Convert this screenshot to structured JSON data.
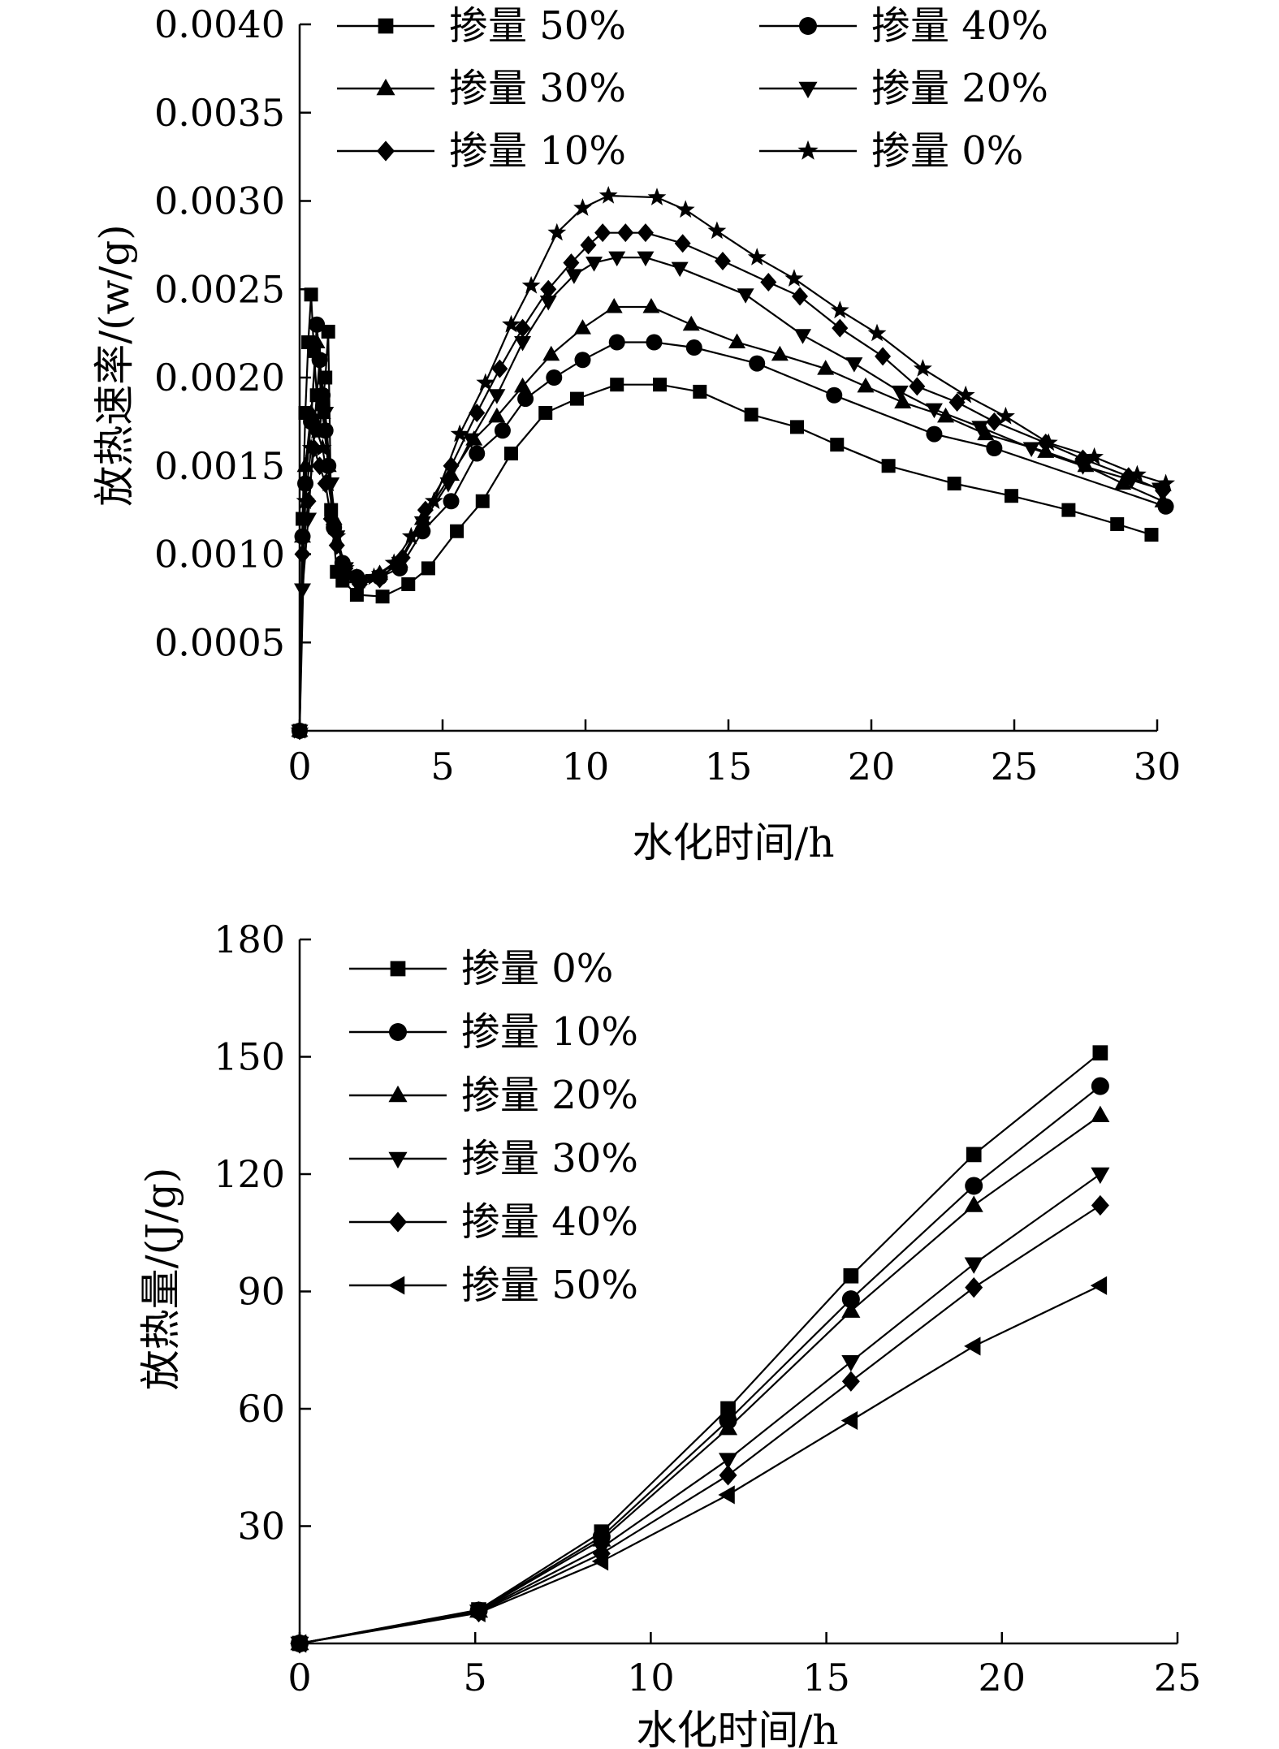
{
  "chart_data": [
    {
      "type": "line",
      "title": "",
      "xlabel": "水化时间/h",
      "ylabel": "放热速率/(w/g)",
      "xlim": [
        0,
        30
      ],
      "ylim": [
        0,
        0.004
      ],
      "xticks": [
        "0",
        "5",
        "10",
        "15",
        "20",
        "25",
        "30"
      ],
      "yticks": [
        "0.0005",
        "0.0010",
        "0.0015",
        "0.0020",
        "0.0025",
        "0.0030",
        "0.0035",
        "0.0040"
      ],
      "grid": false,
      "legend_position": "top, two columns",
      "series": [
        {
          "name": "掺量 50%",
          "marker": "square",
          "x": [
            0,
            0.1,
            0.2,
            0.3,
            0.4,
            0.5,
            0.6,
            0.7,
            0.8,
            0.9,
            1.0,
            1.1,
            1.3,
            1.5,
            2.0,
            2.9,
            3.8,
            4.5,
            5.5,
            6.4,
            7.4,
            8.6,
            9.7,
            11.1,
            12.6,
            14.0,
            15.8,
            17.4,
            18.8,
            20.6,
            22.9,
            24.9,
            26.9,
            28.6,
            29.8
          ],
          "y": [
            0.0,
            0.0012,
            0.0018,
            0.0022,
            0.00247,
            0.00215,
            0.0019,
            0.0017,
            0.00185,
            0.002,
            0.00226,
            0.00125,
            0.0009,
            0.00085,
            0.00077,
            0.00076,
            0.00083,
            0.00092,
            0.00113,
            0.0013,
            0.00157,
            0.0018,
            0.00188,
            0.00196,
            0.00196,
            0.00192,
            0.00179,
            0.00172,
            0.00162,
            0.0015,
            0.0014,
            0.00133,
            0.00125,
            0.00117,
            0.00111
          ]
        },
        {
          "name": "掺量 40%",
          "marker": "circle",
          "x": [
            0,
            0.1,
            0.2,
            0.4,
            0.6,
            0.7,
            0.8,
            0.9,
            1.0,
            1.2,
            1.5,
            2.0,
            2.8,
            3.5,
            4.3,
            5.3,
            6.2,
            7.1,
            7.9,
            8.9,
            9.9,
            11.1,
            12.4,
            13.8,
            16.0,
            18.7,
            22.2,
            24.3,
            30.3
          ],
          "y": [
            0.0,
            0.0011,
            0.0014,
            0.00175,
            0.0023,
            0.0021,
            0.0019,
            0.0017,
            0.0015,
            0.00115,
            0.00095,
            0.00087,
            0.00087,
            0.00092,
            0.00113,
            0.0013,
            0.00157,
            0.0017,
            0.00188,
            0.002,
            0.0021,
            0.0022,
            0.0022,
            0.00217,
            0.00208,
            0.0019,
            0.00168,
            0.0016,
            0.00127
          ]
        },
        {
          "name": "掺量 30%",
          "marker": "triangle-up",
          "x": [
            0,
            0.1,
            0.2,
            0.4,
            0.6,
            0.8,
            1.0,
            1.2,
            1.5,
            2.0,
            2.8,
            3.5,
            4.3,
            5.3,
            6.1,
            6.9,
            7.8,
            8.8,
            9.9,
            11.0,
            12.3,
            13.7,
            15.3,
            16.8,
            18.4,
            19.8,
            21.1,
            22.6,
            24.0,
            26.1,
            27.5,
            28.8,
            30.2
          ],
          "y": [
            0.0,
            0.0011,
            0.0015,
            0.0018,
            0.0022,
            0.0018,
            0.0015,
            0.0012,
            0.00095,
            0.00087,
            0.00089,
            0.00096,
            0.0012,
            0.00145,
            0.00165,
            0.00178,
            0.00195,
            0.00213,
            0.00228,
            0.0024,
            0.0024,
            0.0023,
            0.0022,
            0.00213,
            0.00205,
            0.00195,
            0.00186,
            0.00178,
            0.00168,
            0.00158,
            0.0015,
            0.0014,
            0.0013
          ]
        },
        {
          "name": "掺量 20%",
          "marker": "triangle-down",
          "x": [
            0,
            0.1,
            0.3,
            0.5,
            0.7,
            0.9,
            1.1,
            1.3,
            1.6,
            2.1,
            2.8,
            3.5,
            4.3,
            5.2,
            6.0,
            6.9,
            7.8,
            8.7,
            9.6,
            10.3,
            11.1,
            12.1,
            13.3,
            15.6,
            17.6,
            19.4,
            21.0,
            22.2,
            23.8,
            25.6,
            27.4,
            29.1,
            30.1
          ],
          "y": [
            0.0,
            0.0008,
            0.0012,
            0.0017,
            0.0021,
            0.0018,
            0.0014,
            0.0011,
            0.00092,
            0.00084,
            0.00087,
            0.00095,
            0.00118,
            0.0014,
            0.00165,
            0.0019,
            0.0022,
            0.00243,
            0.00258,
            0.00265,
            0.00268,
            0.00268,
            0.00262,
            0.00247,
            0.00224,
            0.00208,
            0.00192,
            0.00182,
            0.00172,
            0.0016,
            0.0015,
            0.00142,
            0.00137
          ]
        },
        {
          "name": "掺量 10%",
          "marker": "diamond",
          "x": [
            0,
            0.1,
            0.3,
            0.5,
            0.7,
            0.9,
            1.1,
            1.3,
            1.6,
            2.1,
            2.8,
            3.6,
            4.4,
            5.3,
            6.2,
            7.0,
            7.8,
            8.7,
            9.5,
            10.1,
            10.6,
            11.4,
            12.1,
            13.4,
            14.8,
            16.4,
            17.5,
            18.9,
            20.4,
            21.6,
            23.0,
            24.3,
            26.1,
            27.4,
            29.0,
            30.2
          ],
          "y": [
            0.0,
            0.001,
            0.0013,
            0.0016,
            0.0015,
            0.0014,
            0.0012,
            0.00105,
            0.00092,
            0.00083,
            0.00086,
            0.00098,
            0.00125,
            0.0015,
            0.0018,
            0.00205,
            0.00228,
            0.0025,
            0.00265,
            0.00275,
            0.00282,
            0.00282,
            0.00282,
            0.00276,
            0.00266,
            0.00254,
            0.00246,
            0.00228,
            0.00212,
            0.00195,
            0.00186,
            0.00175,
            0.00163,
            0.00154,
            0.00144,
            0.00136
          ]
        },
        {
          "name": "掺量 0%",
          "marker": "star",
          "x": [
            0,
            0.2,
            0.4,
            0.6,
            0.8,
            1.0,
            1.3,
            1.6,
            2.1,
            2.6,
            3.3,
            3.9,
            4.7,
            5.6,
            6.5,
            7.4,
            8.1,
            9.0,
            9.9,
            10.8,
            12.5,
            13.5,
            14.6,
            16.0,
            17.3,
            18.9,
            20.2,
            21.8,
            23.3,
            24.7,
            26.2,
            27.8,
            29.3,
            30.3
          ],
          "y": [
            0.0,
            0.0013,
            0.0016,
            0.0017,
            0.0016,
            0.0014,
            0.0011,
            0.00092,
            0.00085,
            0.00087,
            0.00095,
            0.0011,
            0.0013,
            0.00168,
            0.00197,
            0.0023,
            0.00252,
            0.00282,
            0.00296,
            0.00303,
            0.00302,
            0.00295,
            0.00283,
            0.00268,
            0.00256,
            0.00238,
            0.00225,
            0.00205,
            0.0019,
            0.00178,
            0.00163,
            0.00155,
            0.00145,
            0.0014
          ]
        }
      ]
    },
    {
      "type": "line",
      "title": "",
      "xlabel": "水化时间/h",
      "ylabel": "放热量/(J/g)",
      "xlim": [
        0,
        25
      ],
      "ylim": [
        0,
        180
      ],
      "xticks": [
        "0",
        "5",
        "10",
        "15",
        "20",
        "25"
      ],
      "yticks": [
        "30",
        "60",
        "90",
        "120",
        "150",
        "180"
      ],
      "grid": false,
      "legend_position": "top-left",
      "series": [
        {
          "name": "掺量 0%",
          "marker": "square",
          "x": [
            0,
            5.1,
            8.6,
            12.2,
            15.7,
            19.2,
            22.8
          ],
          "y": [
            0,
            8.6,
            28.5,
            60,
            94,
            125,
            151
          ]
        },
        {
          "name": "掺量 10%",
          "marker": "circle",
          "x": [
            0,
            5.1,
            8.6,
            12.2,
            15.7,
            19.2,
            22.8
          ],
          "y": [
            0,
            8.4,
            27.3,
            57,
            88,
            117,
            142.5
          ]
        },
        {
          "name": "掺量 20%",
          "marker": "triangle-up",
          "x": [
            0,
            5.1,
            8.6,
            12.2,
            15.7,
            19.2,
            22.8
          ],
          "y": [
            0,
            8.3,
            26.5,
            55,
            85,
            112,
            135
          ]
        },
        {
          "name": "掺量 30%",
          "marker": "triangle-down",
          "x": [
            0,
            5.1,
            8.6,
            12.2,
            15.7,
            19.2,
            22.8
          ],
          "y": [
            0,
            8.2,
            24.5,
            47,
            72,
            97,
            120
          ]
        },
        {
          "name": "掺量 40%",
          "marker": "diamond",
          "x": [
            0,
            5.1,
            8.6,
            12.2,
            15.7,
            19.2,
            22.8
          ],
          "y": [
            0,
            8.0,
            23,
            43,
            67,
            91,
            112
          ]
        },
        {
          "name": "掺量 50%",
          "marker": "triangle-left",
          "x": [
            0,
            5.1,
            8.6,
            12.2,
            15.7,
            19.2,
            22.8
          ],
          "y": [
            0,
            7.8,
            21,
            38,
            57,
            76,
            91.5
          ]
        }
      ]
    }
  ]
}
